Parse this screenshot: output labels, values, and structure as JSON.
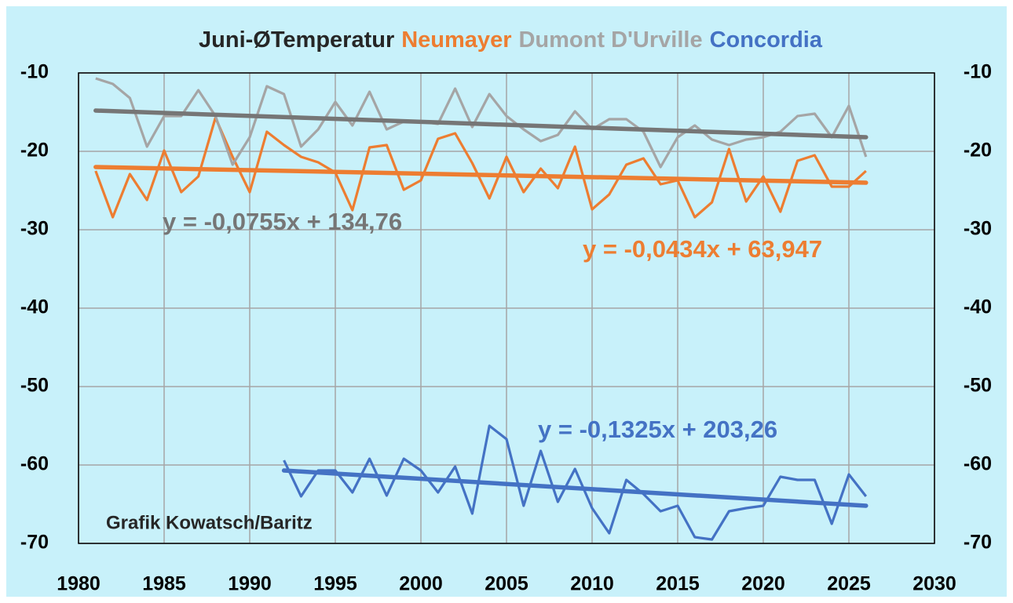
{
  "chart_data": {
    "type": "line",
    "title": "Juni-ØTemperatur",
    "credit": "Grafik Kowatsch/Baritz",
    "x": [
      1981,
      1982,
      1983,
      1984,
      1985,
      1986,
      1987,
      1988,
      1989,
      1990,
      1991,
      1992,
      1993,
      1994,
      1995,
      1996,
      1997,
      1998,
      1999,
      2000,
      2001,
      2002,
      2003,
      2004,
      2005,
      2006,
      2007,
      2008,
      2009,
      2010,
      2011,
      2012,
      2013,
      2014,
      2015,
      2016,
      2017,
      2018,
      2019,
      2020,
      2021,
      2022,
      2023,
      2024,
      2025,
      2026
    ],
    "series": [
      {
        "name": "Neumayer",
        "color": "#ed7d31",
        "trend_color": "#ed7d31",
        "values": [
          -22.5,
          -28.4,
          -22.9,
          -26.2,
          -19.9,
          -25.2,
          -23.2,
          -15.7,
          -20.7,
          -25.2,
          -17.5,
          -19.2,
          -20.7,
          -21.4,
          -22.7,
          -27.5,
          -19.5,
          -19.2,
          -24.9,
          -23.7,
          -18.4,
          -17.7,
          -21.5,
          -26.0,
          -20.7,
          -25.2,
          -22.2,
          -24.7,
          -19.4,
          -27.4,
          -25.5,
          -21.7,
          -20.9,
          -24.2,
          -23.7,
          -28.4,
          -26.5,
          -19.7,
          -26.4,
          -23.2,
          -27.7,
          -21.2,
          -20.5,
          -24.5,
          -24.5,
          -22.5
        ],
        "trend": {
          "x": [
            1981,
            2026
          ],
          "values": [
            -22.0,
            -24.0
          ]
        },
        "trend_label": "y = -0,0434x + 63,947"
      },
      {
        "name": "Dumont D'Urville",
        "color": "#a5a5a5",
        "trend_color": "#767676",
        "values": [
          -10.7,
          -11.4,
          -13.2,
          -19.4,
          -15.5,
          -15.5,
          -12.2,
          -15.5,
          -21.7,
          -18.2,
          -11.7,
          -12.7,
          -19.4,
          -17.2,
          -13.7,
          -16.7,
          -12.4,
          -17.2,
          -16.2,
          -16.2,
          -16.5,
          -12.0,
          -16.9,
          -12.7,
          -15.5,
          -17.2,
          -18.7,
          -17.9,
          -14.9,
          -17.2,
          -15.9,
          -15.9,
          -17.5,
          -22.0,
          -18.2,
          -16.7,
          -18.5,
          -19.2,
          -18.5,
          -18.2,
          -17.5,
          -15.5,
          -15.2,
          -18.2,
          -14.2,
          -20.7
        ],
        "trend": {
          "x": [
            1981,
            2026
          ],
          "values": [
            -14.8,
            -18.2
          ]
        },
        "trend_label": "y = -0,0755x + 134,76"
      },
      {
        "name": "Concordia",
        "color": "#4472c4",
        "trend_color": "#4472c4",
        "values": [
          null,
          null,
          null,
          null,
          null,
          null,
          null,
          null,
          null,
          null,
          null,
          -59.4,
          -64.0,
          -60.7,
          -60.7,
          -63.5,
          -59.2,
          -63.9,
          -59.2,
          -60.7,
          -63.5,
          -60.2,
          -66.2,
          -55.0,
          -56.7,
          -65.2,
          -58.2,
          -64.7,
          -60.5,
          -65.5,
          -68.7,
          -61.9,
          -63.7,
          -65.9,
          -65.2,
          -69.2,
          -69.5,
          -65.9,
          -65.5,
          -65.2,
          -61.5,
          -61.9,
          -61.9,
          -67.5,
          -61.2,
          -64.0
        ],
        "trend": {
          "x": [
            1992,
            2026
          ],
          "values": [
            -60.7,
            -65.2
          ]
        },
        "trend_label": "y = -0,1325x + 203,26"
      }
    ],
    "xlim": [
      1980,
      2030
    ],
    "xticks": [
      1980,
      1985,
      1990,
      1995,
      2000,
      2005,
      2010,
      2015,
      2020,
      2025,
      2030
    ],
    "ylim": [
      -70,
      -10
    ],
    "yticks": [
      -70,
      -60,
      -50,
      -40,
      -30,
      -20,
      -10
    ],
    "y2lim": [
      -70,
      -10
    ],
    "y2ticks": [
      -70,
      -60,
      -50,
      -40,
      -30,
      -20,
      -10
    ],
    "grid": true
  }
}
